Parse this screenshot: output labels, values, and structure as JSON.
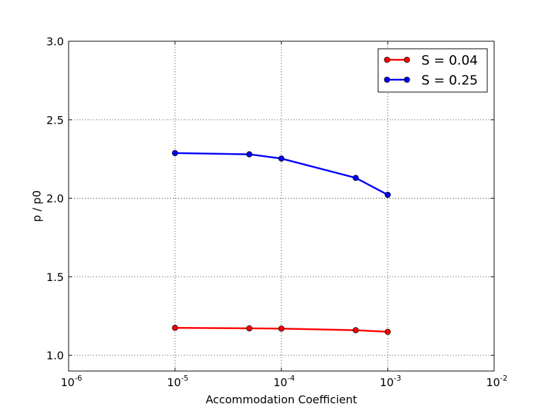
{
  "chart_data": {
    "type": "line",
    "title": "",
    "xlabel": "Accommodation Coefficient",
    "ylabel": "p / p0",
    "x_scale": "log",
    "xlim": [
      1e-06,
      0.01
    ],
    "ylim": [
      0.9,
      3.0
    ],
    "grid": true,
    "legend_position": "top-right",
    "x_ticks": [
      {
        "base": "10",
        "exp": "-6",
        "value": 1e-06
      },
      {
        "base": "10",
        "exp": "-5",
        "value": 1e-05
      },
      {
        "base": "10",
        "exp": "-4",
        "value": 0.0001
      },
      {
        "base": "10",
        "exp": "-3",
        "value": 0.001
      },
      {
        "base": "10",
        "exp": "-2",
        "value": 0.01
      }
    ],
    "y_ticks": [
      {
        "label": "1.0",
        "value": 1.0
      },
      {
        "label": "1.5",
        "value": 1.5
      },
      {
        "label": "2.0",
        "value": 2.0
      },
      {
        "label": "2.5",
        "value": 2.5
      },
      {
        "label": "3.0",
        "value": 3.0
      }
    ],
    "series": [
      {
        "name": "S = 0.04",
        "color": "#ff0000",
        "x": [
          1e-05,
          5e-05,
          0.0001,
          0.0005,
          0.001
        ],
        "y": [
          1.175,
          1.172,
          1.17,
          1.16,
          1.15
        ]
      },
      {
        "name": "S = 0.25",
        "color": "#0000ff",
        "x": [
          1e-05,
          5e-05,
          0.0001,
          0.0005,
          0.001
        ],
        "y": [
          2.288,
          2.28,
          2.253,
          2.13,
          2.022
        ]
      }
    ]
  }
}
